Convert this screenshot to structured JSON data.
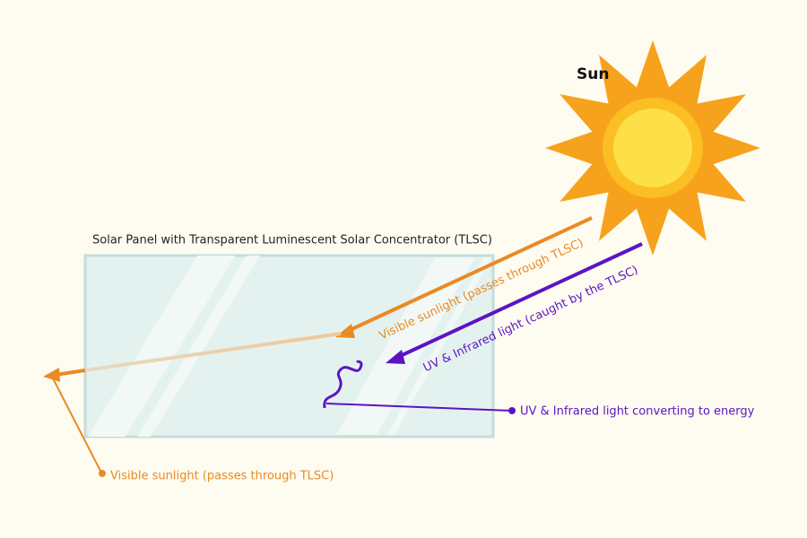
{
  "sun": {
    "label": "Sun"
  },
  "panel": {
    "title": "Solar Panel with Transparent Luminescent Solar Concentrator (TLSC)"
  },
  "rays": {
    "visible_incoming": "Visible sunlight (passes through TLSC)",
    "uv_incoming": "UV & Infrared light (caught by the TLSC)",
    "uv_converting": "UV & Infrared light converting to energy",
    "visible_outgoing": "Visible sunlight (passes through TLSC)"
  }
}
